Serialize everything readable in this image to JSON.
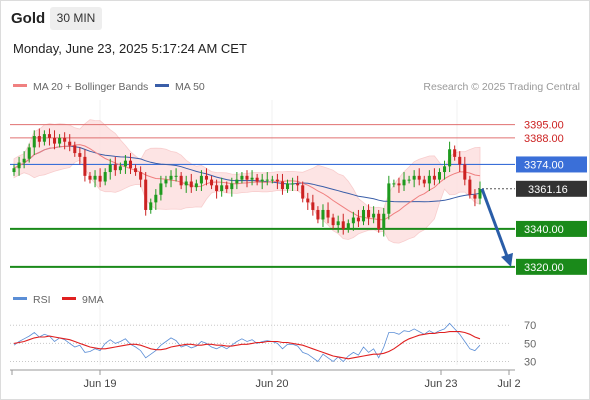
{
  "header": {
    "instrument": "Gold",
    "timeframe": "30 MIN",
    "datetime": "Monday, June 23, 2025 5:17:24 AM CET"
  },
  "legend": {
    "ma20_label": "MA 20 + Bollinger Bands",
    "ma50_label": "MA 50",
    "source": "Research © 2025 Trading Central",
    "rsi_label": "RSI",
    "rsi_ma_label": "9MA"
  },
  "colors": {
    "candle_up": "#1e9a1e",
    "candle_down": "#cc2222",
    "ma20": "#f08080",
    "ma50": "#3a5ea8",
    "bollinger_fill": "#fde0e0",
    "resistance": "#e07070",
    "pivot_blue": "#3a6fd8",
    "support": "#1a8a1a",
    "current_price_bg": "#333333",
    "arrow": "#2a5da8",
    "rsi": "#5b8ed6",
    "rsi_ma": "#e02020"
  },
  "chart_data": [
    {
      "type": "candlestick",
      "ylim": [
        3312,
        3408
      ],
      "x_ticks": [
        "Jun 19",
        "Jun 20",
        "Jun 23",
        "Jul 2"
      ],
      "current_price": 3361.16,
      "current_price_label": "3361.16",
      "levels": [
        {
          "value": 3395.0,
          "label": "3395.00",
          "kind": "resistance"
        },
        {
          "value": 3388.0,
          "label": "3388.00",
          "kind": "resistance"
        },
        {
          "value": 3374.0,
          "label": "3374.00",
          "kind": "pivot"
        },
        {
          "value": 3340.0,
          "label": "3340.00",
          "kind": "support"
        },
        {
          "value": 3320.0,
          "label": "3320.00",
          "kind": "support"
        }
      ],
      "forecast": {
        "from": 3361.16,
        "to": 3320.0
      },
      "closes": [
        3372,
        3375,
        3377,
        3383,
        3389,
        3386,
        3390,
        3388,
        3385,
        3388,
        3386,
        3384,
        3380,
        3378,
        3368,
        3366,
        3368,
        3365,
        3370,
        3374,
        3371,
        3373,
        3376,
        3372,
        3370,
        3366,
        3350,
        3354,
        3358,
        3364,
        3366,
        3368,
        3368,
        3363,
        3365,
        3362,
        3364,
        3368,
        3366,
        3363,
        3360,
        3363,
        3361,
        3364,
        3366,
        3368,
        3366,
        3367,
        3365,
        3366,
        3366,
        3366,
        3365,
        3361,
        3364,
        3364,
        3363,
        3356,
        3354,
        3350,
        3345,
        3350,
        3346,
        3342,
        3344,
        3340,
        3343,
        3346,
        3344,
        3350,
        3346,
        3348,
        3340,
        3348,
        3364,
        3364,
        3363,
        3366,
        3366,
        3368,
        3366,
        3364,
        3368,
        3366,
        3370,
        3373,
        3382,
        3378,
        3374,
        3366,
        3358,
        3356,
        3361
      ]
    },
    {
      "type": "line",
      "name": "RSI",
      "yticks": [
        30,
        50,
        70
      ],
      "ylim": [
        25,
        78
      ],
      "series": [
        {
          "name": "RSI",
          "values": [
            48,
            52,
            55,
            58,
            62,
            57,
            60,
            58,
            52,
            56,
            54,
            50,
            46,
            48,
            40,
            41,
            44,
            42,
            50,
            54,
            50,
            52,
            55,
            49,
            46,
            42,
            34,
            38,
            42,
            48,
            52,
            56,
            53,
            46,
            48,
            45,
            47,
            52,
            50,
            46,
            44,
            47,
            44,
            48,
            52,
            55,
            52,
            54,
            50,
            52,
            53,
            52,
            50,
            44,
            49,
            49,
            47,
            40,
            38,
            34,
            30,
            38,
            34,
            30,
            35,
            30,
            36,
            40,
            37,
            46,
            40,
            44,
            34,
            46,
            62,
            62,
            60,
            64,
            63,
            66,
            63,
            60,
            64,
            61,
            64,
            66,
            72,
            66,
            60,
            52,
            44,
            42,
            48
          ]
        },
        {
          "name": "9MA",
          "values": [
            50,
            51,
            52,
            54,
            56,
            57,
            57,
            58,
            57,
            56,
            55,
            54,
            52,
            50,
            48,
            46,
            45,
            44,
            44,
            45,
            46,
            47,
            48,
            49,
            49,
            48,
            46,
            44,
            43,
            43,
            44,
            46,
            47,
            48,
            49,
            49,
            48,
            48,
            49,
            49,
            48,
            48,
            47,
            47,
            48,
            49,
            49,
            50,
            51,
            51,
            52,
            52,
            52,
            51,
            51,
            50,
            49,
            48,
            46,
            44,
            42,
            40,
            38,
            36,
            35,
            34,
            33,
            34,
            35,
            36,
            37,
            38,
            38,
            39,
            41,
            44,
            48,
            52,
            55,
            57,
            59,
            60,
            61,
            61,
            62,
            62,
            63,
            63,
            63,
            62,
            60,
            57,
            55
          ]
        }
      ]
    }
  ]
}
